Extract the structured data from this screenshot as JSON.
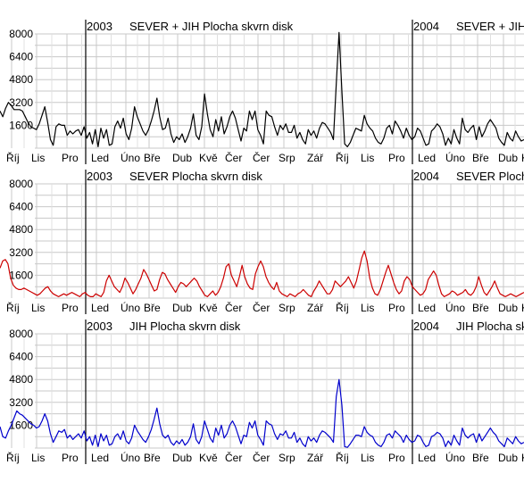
{
  "chart_data": [
    {
      "type": "line",
      "color": "#000000",
      "ylim": [
        0,
        8000
      ],
      "yticks": [
        1600,
        3200,
        4800,
        6400,
        8000
      ],
      "xticks": [
        "Říj",
        "Lis",
        "Pro",
        "Led",
        "Úno",
        "Bře",
        "Dub",
        "Kvě",
        "Čer",
        "Čer",
        "Srp",
        "Zář",
        "Říj",
        "Lis",
        "Pro",
        "Led",
        "Úno",
        "Bře",
        "Dub",
        "Kvě"
      ],
      "titles": [
        {
          "year": "2003",
          "text": "SEVER + JIH   Plocha skvrn disk"
        },
        {
          "year": "2004",
          "text": "SEVER + JIH   Plocha skvrn disk"
        }
      ],
      "series": [
        {
          "values": [
            2600,
            2200,
            2800,
            3200,
            3000,
            2700,
            2700,
            2700,
            2600,
            2200,
            1800,
            1500,
            1400,
            1300,
            1700,
            2300,
            2900,
            1800,
            600,
            200,
            1500,
            1700,
            1600,
            1600,
            900,
            1200,
            1000,
            1200,
            1300,
            900,
            1500,
            700,
            1100,
            300,
            1300,
            100,
            1400,
            700,
            1300,
            200,
            300,
            1500,
            1900,
            1400,
            2100,
            1000,
            600,
            1400,
            2900,
            2200,
            1700,
            1200,
            900,
            1300,
            1900,
            2600,
            3500,
            2200,
            1300,
            1400,
            2100,
            1000,
            400,
            800,
            600,
            1000,
            400,
            800,
            1400,
            2400,
            900,
            600,
            1500,
            3800,
            2400,
            1300,
            800,
            2000,
            1200,
            2200,
            1000,
            1500,
            2200,
            2600,
            2100,
            1300,
            500,
            1400,
            1200,
            2600,
            2000,
            2600,
            1300,
            900,
            300,
            2600,
            2300,
            2200,
            1500,
            900,
            1600,
            1300,
            1700,
            1100,
            1100,
            1600,
            700,
            1100,
            600,
            300,
            1300,
            900,
            1200,
            700,
            1400,
            1800,
            1700,
            1400,
            1100,
            600,
            4500,
            8100,
            4000,
            300,
            100,
            400,
            900,
            1400,
            1300,
            1200,
            2300,
            1700,
            1400,
            1200,
            700,
            400,
            300,
            700,
            1400,
            1600,
            1000,
            1900,
            1600,
            1200,
            700,
            1400,
            900,
            600,
            800,
            1400,
            1200,
            700,
            200,
            300,
            1200,
            1400,
            1700,
            1500,
            1000,
            200,
            700,
            300,
            1300,
            700,
            300,
            2100,
            1300,
            1100,
            1400,
            1600,
            600,
            1500,
            800,
            1200,
            1700,
            2000,
            1700,
            1400,
            700,
            400,
            200,
            1100,
            700,
            500,
            1200,
            800,
            500,
            600
          ]
        }
      ]
    },
    {
      "type": "line",
      "color": "#cc0000",
      "ylim": [
        0,
        8000
      ],
      "yticks": [
        1600,
        3200,
        4800,
        6400,
        8000
      ],
      "xticks": [
        "Říj",
        "Lis",
        "Pro",
        "Led",
        "Úno",
        "Bře",
        "Dub",
        "Kvě",
        "Čer",
        "Čer",
        "Srp",
        "Zář",
        "Říj",
        "Lis",
        "Pro",
        "Led",
        "Úno",
        "Bře",
        "Dub",
        "Kvě"
      ],
      "titles": [
        {
          "year": "2003",
          "text": "SEVER   Plocha skvrn disk"
        },
        {
          "year": "2004",
          "text": "SEVER   Plocha skvrn disk"
        }
      ],
      "series": [
        {
          "values": [
            2100,
            2600,
            2700,
            2400,
            1400,
            900,
            700,
            600,
            600,
            700,
            600,
            500,
            400,
            300,
            200,
            300,
            500,
            700,
            800,
            500,
            300,
            200,
            100,
            200,
            300,
            200,
            300,
            400,
            300,
            200,
            100,
            300,
            400,
            200,
            100,
            100,
            300,
            200,
            100,
            400,
            1200,
            1600,
            1200,
            800,
            600,
            400,
            800,
            1400,
            1100,
            700,
            300,
            600,
            1000,
            1400,
            2000,
            1700,
            1300,
            900,
            500,
            600,
            1300,
            1800,
            1700,
            1300,
            1000,
            700,
            400,
            800,
            1100,
            1000,
            800,
            1000,
            1200,
            1400,
            1200,
            800,
            500,
            200,
            100,
            300,
            500,
            200,
            400,
            800,
            1400,
            2200,
            2400,
            1600,
            1200,
            800,
            1500,
            2300,
            1500,
            1000,
            700,
            600,
            1700,
            2200,
            2600,
            2200,
            1500,
            1100,
            800,
            600,
            1100,
            500,
            300,
            200,
            100,
            300,
            200,
            100,
            300,
            400,
            600,
            400,
            200,
            100,
            500,
            800,
            1200,
            900,
            600,
            300,
            300,
            600,
            1200,
            1000,
            800,
            1000,
            1200,
            1500,
            1100,
            700,
            1200,
            2000,
            2800,
            3300,
            2600,
            1400,
            700,
            300,
            200,
            600,
            1200,
            1800,
            2300,
            1700,
            1100,
            600,
            300,
            500,
            1200,
            1500,
            1300,
            800,
            600,
            400,
            200,
            300,
            600,
            1300,
            1600,
            1900,
            1600,
            900,
            300,
            100,
            200,
            300,
            500,
            400,
            200,
            300,
            400,
            600,
            300,
            200,
            400,
            800,
            1500,
            900,
            400,
            200,
            500,
            800,
            1200,
            700,
            300,
            200,
            100,
            200,
            300,
            200,
            100,
            200,
            300,
            400
          ]
        }
      ]
    },
    {
      "type": "line",
      "color": "#0000cc",
      "ylim": [
        0,
        8000
      ],
      "yticks": [
        1600,
        3200,
        4800,
        6400,
        8000
      ],
      "xticks": [
        "Říj",
        "Lis",
        "Pro",
        "Led",
        "Úno",
        "Bře",
        "Dub",
        "Kvě",
        "Čer",
        "Čer",
        "Srp",
        "Zář",
        "Říj",
        "Lis",
        "Pro",
        "Led",
        "Úno",
        "Bře",
        "Dub",
        "Kvě"
      ],
      "titles": [
        {
          "year": "2003",
          "text": "JIH   Plocha skvrn disk"
        },
        {
          "year": "2004",
          "text": "JIH   Plocha skvrn disk"
        }
      ],
      "series": [
        {
          "values": [
            1500,
            800,
            700,
            1200,
            1600,
            2100,
            2600,
            2400,
            2300,
            2100,
            1900,
            1700,
            1600,
            1400,
            1500,
            1900,
            2400,
            1900,
            1000,
            400,
            800,
            1200,
            1100,
            1300,
            700,
            900,
            600,
            800,
            1000,
            700,
            1200,
            500,
            800,
            200,
            900,
            100,
            1000,
            500,
            900,
            200,
            300,
            800,
            1000,
            600,
            1200,
            500,
            300,
            700,
            1600,
            1200,
            900,
            600,
            400,
            800,
            1300,
            2000,
            2800,
            1700,
            900,
            700,
            900,
            400,
            200,
            500,
            300,
            600,
            200,
            400,
            800,
            1700,
            600,
            300,
            800,
            1900,
            1300,
            700,
            400,
            1400,
            900,
            1600,
            700,
            1000,
            1600,
            1900,
            1500,
            900,
            300,
            900,
            800,
            1800,
            1400,
            1900,
            900,
            600,
            200,
            1900,
            1700,
            1600,
            1000,
            600,
            1000,
            900,
            1200,
            700,
            700,
            1100,
            400,
            700,
            300,
            100,
            800,
            500,
            700,
            400,
            900,
            1200,
            1100,
            900,
            700,
            400,
            3600,
            4800,
            3000,
            100,
            50,
            300,
            600,
            900,
            900,
            800,
            1500,
            1100,
            900,
            800,
            400,
            200,
            100,
            400,
            900,
            1000,
            700,
            1200,
            1000,
            800,
            400,
            900,
            600,
            400,
            500,
            900,
            800,
            400,
            100,
            200,
            800,
            900,
            1100,
            1000,
            700,
            100,
            500,
            200,
            900,
            500,
            200,
            1400,
            900,
            700,
            900,
            1000,
            400,
            1000,
            500,
            800,
            1100,
            1400,
            1100,
            900,
            500,
            300,
            100,
            700,
            500,
            300,
            800,
            500,
            300,
            400
          ]
        }
      ]
    }
  ]
}
